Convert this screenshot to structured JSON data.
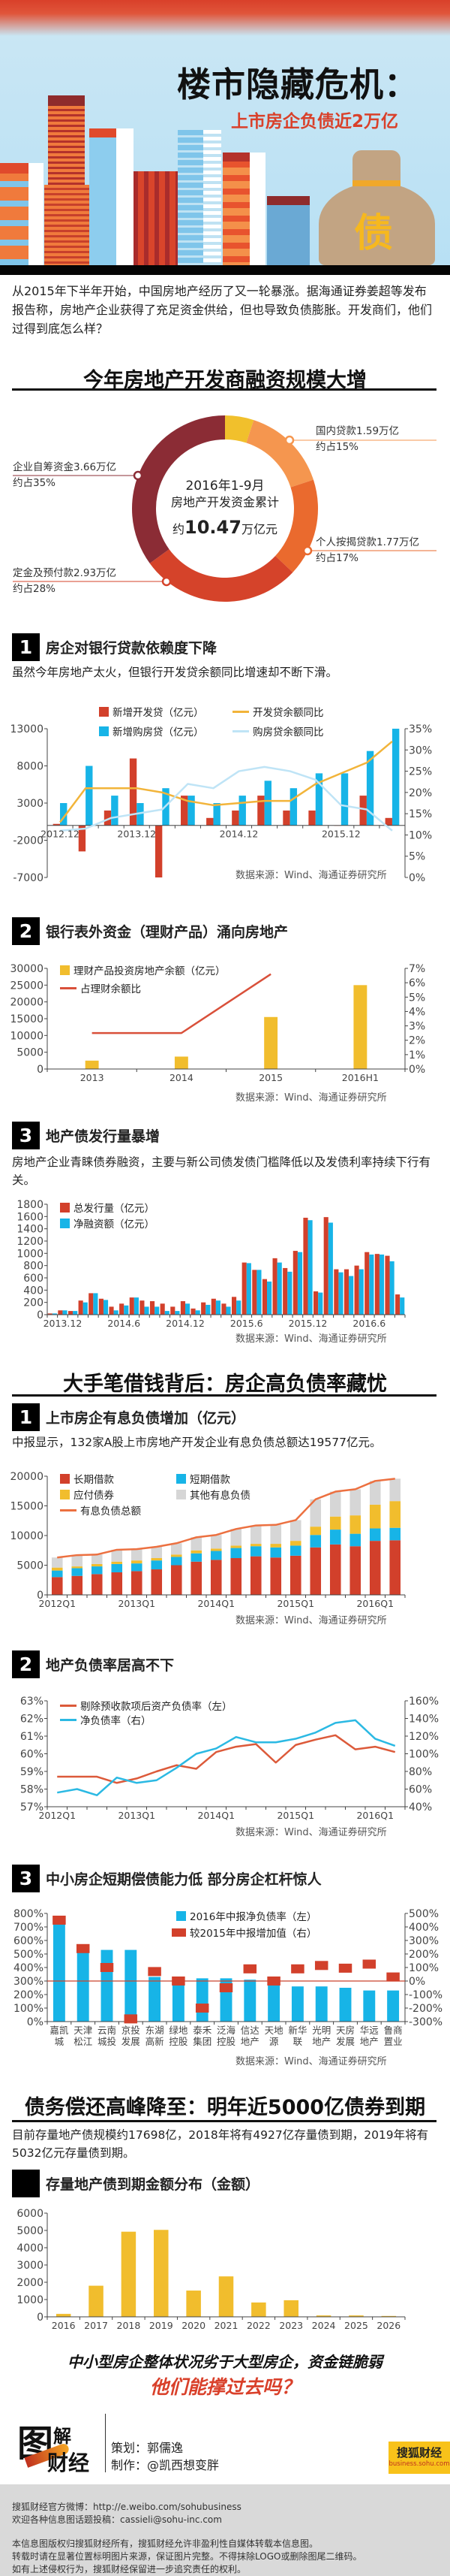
{
  "header": {
    "title": "楼市隐藏危机：",
    "subtitle": "上市房企负债近2万亿",
    "bag_char": "债"
  },
  "intro": "从2015年下半年开始，中国房地产经历了又一轮暴涨。据海通证券姜超等发布报告称，房地产企业获得了充足资金供给，但也导致负债膨胀。开发商们，他们过得到底怎么样？",
  "part1": {
    "title": "今年房地产开发商融资规模大增",
    "center_line1": "2016年1-9月",
    "center_line2": "房地产开发资金累计",
    "center_prefix": "约",
    "center_value": "10.47",
    "center_unit": "万亿元"
  },
  "sec1": {
    "num": "1",
    "title": "房企对银行贷款依赖度下降",
    "desc": "虽然今年房地产太火，但银行开发贷余额同比增速却不断下滑。"
  },
  "sec2": {
    "num": "2",
    "title": "银行表外资金（理财产品）涌向房地产"
  },
  "sec3": {
    "num": "3",
    "title": "地产债发行量暴增",
    "desc": "房地产企业青睐债券融资，主要与新公司债发债门槛降低以及发债利率持续下行有关。"
  },
  "part2": {
    "title": "大手笔借钱背后：房企高负债率藏忧"
  },
  "sec4": {
    "num": "1",
    "title": "上市房企有息负债增加（亿元）",
    "desc": "中报显示，132家A股上市房地产开发企业有息负债总额达19577亿元。"
  },
  "sec5": {
    "num": "2",
    "title": "地产负债率居高不下"
  },
  "sec6": {
    "num": "3",
    "title": "中小房企短期偿债能力低  部分房企杠杆惊人"
  },
  "part3": {
    "title": "债务偿还高峰降至：明年近5000亿债券到期",
    "desc": "目前存量地产债规模约17698亿，2018年将有4927亿存量债到期，2019年将有5032亿元存量债到期。"
  },
  "sec7": {
    "title": "存量地产债到期金额分布（金额）"
  },
  "source": "数据来源：Wind、海通证券研究所",
  "closing": {
    "line1": "中小型房企整体状况劣于大型房企，资金链脆弱",
    "line2": "他们能撑过去吗？"
  },
  "credits": {
    "logo_text1": "图",
    "logo_text2": "解",
    "logo_text3": "财经",
    "planner": "策划：郭儒逸",
    "producer": "制作：@凯西想变胖",
    "badge_name": "搜狐财经",
    "badge_url": "business.sohu.com"
  },
  "footer": {
    "weibo": "搜狐财经官方微博：http://e.weibo.com/sohubusiness",
    "contrib": "欢迎各种信息图话题投稿：cassieli@sohu-inc.com",
    "copy1": "本信息图版权归搜狐财经所有，搜狐财经允许非盈利性自媒体转载本信息图。",
    "copy2": "转载时请在显著位置标明图片来源，保证图片完整。不得抹除LOGO或删除图尾二维码。",
    "copy3": "如有上述侵权行为，搜狐财经保留进一步追究责任的权利。"
  },
  "colors": {
    "red": "#d2402b",
    "blue": "#17b4e7",
    "yellow": "#f1bd2d",
    "gray": "#d6d6d6",
    "dark_red": "#8b2c35",
    "orange": "#ea6a2e",
    "light_orange": "#f5964f"
  },
  "chart_data": [
    {
      "type": "pie",
      "title": "今年房地产开发商融资规模大增",
      "segments": [
        {
          "name": "",
          "share": "",
          "value": 5,
          "color": "#f1c02c"
        },
        {
          "name": "国内贷款1.59万亿",
          "share": "约占15%",
          "value": 15,
          "color": "#f5964f"
        },
        {
          "name": "个人按揭贷款1.77万亿",
          "share": "约占17%",
          "value": 17,
          "color": "#ea6a2e"
        },
        {
          "name": "定金及预付款2.93万亿",
          "share": "约占28%",
          "value": 28,
          "color": "#d5432a"
        },
        {
          "name": "企业自筹资金3.66万亿",
          "share": "约占35%",
          "value": 35,
          "color": "#8b2c35"
        }
      ]
    },
    {
      "type": "bar",
      "title": "房企对银行贷款依赖度下降",
      "n": 14,
      "left_range": [
        -7000,
        13000
      ],
      "left_ticks": [
        "13000",
        "8000",
        "3000",
        "-2000",
        "-7000"
      ],
      "right_range": [
        0,
        35
      ],
      "right_ticks": [
        "35%",
        "30%",
        "25%",
        "20%",
        "15%",
        "10%",
        "5%",
        "0%"
      ],
      "x_labels": [
        {
          "at": 0,
          "label": "2012.12"
        },
        {
          "at": 3,
          "label": "2013.12"
        },
        {
          "at": 7,
          "label": "2014.12"
        },
        {
          "at": 11,
          "label": "2015.12"
        }
      ],
      "series": [
        {
          "name": "新增开发贷（亿元）",
          "type": "bar",
          "axis": "left",
          "color": "#d2402b",
          "values": [
            200,
            -3500,
            2000,
            9000,
            -7000,
            4000,
            1000,
            2000,
            4000,
            2000,
            2000,
            0,
            4000,
            1000
          ]
        },
        {
          "name": "新增购房贷（亿元）",
          "type": "bar",
          "axis": "left",
          "color": "#17b4e7",
          "values": [
            3000,
            8000,
            4000,
            3000,
            5000,
            4000,
            3000,
            4000,
            6000,
            5000,
            7000,
            7000,
            10000,
            13000
          ]
        },
        {
          "name": "开发贷余额同比",
          "type": "line",
          "axis": "right",
          "color": "#f2b43a",
          "values": [
            13,
            21,
            21,
            21,
            20,
            18,
            17,
            17.5,
            18,
            18,
            22,
            24.5,
            27,
            32
          ]
        },
        {
          "name": "购房贷余额同比",
          "type": "line",
          "axis": "right",
          "color": "#bfe4f6",
          "values": [
            11,
            11.5,
            14,
            15,
            16,
            22,
            21,
            25,
            26,
            25,
            23,
            17,
            16,
            11
          ]
        }
      ]
    },
    {
      "type": "bar",
      "title": "银行表外资金（理财产品）涌向房地产",
      "n": 4,
      "left_range": [
        0,
        30000
      ],
      "left_ticks": [
        "30000",
        "25000",
        "20000",
        "15000",
        "10000",
        "5000",
        "0"
      ],
      "right_range": [
        0,
        7
      ],
      "right_ticks": [
        "7%",
        "6%",
        "5%",
        "4%",
        "3%",
        "2%",
        "1%",
        "0%"
      ],
      "x_labels": [
        {
          "at": 0,
          "label": "2013"
        },
        {
          "at": 1,
          "label": "2014"
        },
        {
          "at": 2,
          "label": "2015"
        },
        {
          "at": 3,
          "label": "2016H1"
        }
      ],
      "series": [
        {
          "name": "理财产品投资房地产余额（亿元）",
          "type": "bar",
          "axis": "left",
          "color": "#f1bd2d",
          "values": [
            2500,
            3700,
            15500,
            25000
          ]
        },
        {
          "name": "占理财余额比",
          "type": "line",
          "axis": "right",
          "color": "#d9503a",
          "values": [
            2.5,
            2.5,
            6.6,
            null
          ]
        }
      ]
    },
    {
      "type": "bar",
      "title": "地产债发行量暴增",
      "n": 35,
      "left_range": [
        0,
        1800
      ],
      "left_ticks": [
        "1800",
        "1600",
        "1400",
        "1200",
        "1000",
        "800",
        "600",
        "400",
        "200",
        "0"
      ],
      "x_labels": [
        {
          "at": 1,
          "label": "2013.12"
        },
        {
          "at": 7,
          "label": "2014.6"
        },
        {
          "at": 13,
          "label": "2014.12"
        },
        {
          "at": 19,
          "label": "2015.6"
        },
        {
          "at": 25,
          "label": "2015.12"
        },
        {
          "at": 31,
          "label": "2016.6"
        }
      ],
      "series": [
        {
          "name": "总发行量（亿元）",
          "type": "bar",
          "axis": "left",
          "color": "#d2402b",
          "values": [
            20,
            70,
            60,
            230,
            350,
            260,
            130,
            180,
            280,
            230,
            220,
            180,
            130,
            220,
            100,
            200,
            260,
            180,
            290,
            850,
            730,
            580,
            920,
            760,
            1040,
            1580,
            380,
            1590,
            740,
            740,
            800,
            1020,
            990,
            960,
            330
          ]
        },
        {
          "name": "净融资额（亿元）",
          "type": "bar",
          "axis": "left",
          "color": "#17b4e7",
          "values": [
            20,
            70,
            60,
            200,
            350,
            240,
            70,
            150,
            280,
            130,
            130,
            60,
            60,
            180,
            70,
            160,
            230,
            130,
            230,
            840,
            730,
            540,
            850,
            700,
            1020,
            1540,
            360,
            1500,
            690,
            630,
            740,
            980,
            980,
            870,
            280
          ]
        }
      ]
    },
    {
      "type": "bar",
      "stacked": true,
      "title": "上市房企有息负债增加（亿元）",
      "n": 18,
      "left_range": [
        0,
        20000
      ],
      "left_ticks": [
        "20000",
        "15000",
        "10000",
        "5000",
        "0"
      ],
      "x_labels": [
        {
          "at": 0,
          "label": "2012Q1"
        },
        {
          "at": 4,
          "label": "2013Q1"
        },
        {
          "at": 8,
          "label": "2014Q1"
        },
        {
          "at": 12,
          "label": "2015Q1"
        },
        {
          "at": 16,
          "label": "2016Q1"
        }
      ],
      "series": [
        {
          "name": "长期借款",
          "type": "bar",
          "axis": "left",
          "color": "#d2402b",
          "values": [
            3000,
            3200,
            3500,
            3800,
            4000,
            4300,
            5000,
            5600,
            5900,
            6200,
            6500,
            6300,
            6600,
            8000,
            8500,
            8200,
            9100,
            9200
          ]
        },
        {
          "name": "短期借款",
          "type": "bar",
          "axis": "left",
          "color": "#17b4e7",
          "values": [
            1100,
            1300,
            1300,
            1400,
            1300,
            1500,
            1400,
            1400,
            1500,
            1700,
            1700,
            1700,
            1700,
            2100,
            2500,
            2100,
            2100,
            2100
          ]
        },
        {
          "name": "应付债券",
          "type": "bar",
          "axis": "left",
          "color": "#f1bd2d",
          "values": [
            500,
            300,
            400,
            400,
            500,
            400,
            400,
            500,
            400,
            400,
            400,
            600,
            800,
            1400,
            2200,
            3100,
            4000,
            4500
          ]
        },
        {
          "name": "其他有息负债",
          "type": "bar",
          "axis": "left",
          "color": "#d6d6d6",
          "values": [
            1700,
            1900,
            1600,
            2000,
            1900,
            1900,
            1900,
            2200,
            2300,
            2800,
            3100,
            3200,
            3500,
            4600,
            4200,
            4400,
            4000,
            3777
          ]
        },
        {
          "name": "有息负债总额",
          "type": "line",
          "axis": "left",
          "color": "#ec7040",
          "values": [
            6300,
            6700,
            6800,
            7600,
            7700,
            8100,
            8700,
            9700,
            10100,
            11100,
            11700,
            11800,
            12600,
            16100,
            17400,
            17800,
            19200,
            19577
          ]
        }
      ]
    },
    {
      "type": "line",
      "title": "地产负债率居高不下",
      "n": 18,
      "left_range": [
        57,
        63
      ],
      "left_ticks": [
        "63%",
        "62%",
        "61%",
        "60%",
        "59%",
        "58%",
        "57%"
      ],
      "right_range": [
        40,
        160
      ],
      "right_ticks": [
        "160%",
        "140%",
        "120%",
        "100%",
        "80%",
        "60%",
        "40%"
      ],
      "x_labels": [
        {
          "at": 0,
          "label": "2012Q1"
        },
        {
          "at": 4,
          "label": "2013Q1"
        },
        {
          "at": 8,
          "label": "2014Q1"
        },
        {
          "at": 12,
          "label": "2015Q1"
        },
        {
          "at": 16,
          "label": "2016Q1"
        }
      ],
      "series": [
        {
          "name": "剔除预收款项后资产负债率（左）",
          "type": "line",
          "axis": "left",
          "color": "#dc5a3a",
          "values": [
            58.7,
            58.7,
            58.7,
            58.35,
            58.6,
            59.0,
            59.35,
            59.15,
            60.1,
            60.4,
            60.55,
            59.5,
            60.5,
            60.8,
            61.05,
            60.25,
            60.4,
            60.1
          ]
        },
        {
          "name": "净负债率（右）",
          "type": "line",
          "axis": "right",
          "color": "#2bb9e3",
          "values": [
            56,
            60,
            53,
            73,
            67,
            70,
            84,
            100,
            106,
            119,
            113,
            113,
            117,
            124,
            135,
            138,
            117,
            109
          ]
        }
      ]
    },
    {
      "type": "bar",
      "title": "中小房企短期偿债能力低  部分房企杠杆惊人",
      "n": 15,
      "categories": [
        "嘉凯城",
        "天津松江",
        "云南城投",
        "京投发展",
        "东湖高新",
        "绿地控股",
        "泰禾集团",
        "泛海控股",
        "信达地产",
        "天地源",
        "新华联",
        "光明地产",
        "天房发展",
        "华远地产",
        "鲁商置业"
      ],
      "left_range": [
        0,
        800
      ],
      "left_ticks": [
        "800%",
        "700%",
        "600%",
        "500%",
        "400%",
        "300%",
        "200%",
        "100%",
        "0%"
      ],
      "right_range": [
        -300,
        500
      ],
      "right_ticks": [
        "500%",
        "400%",
        "300%",
        "200%",
        "100%",
        "0%",
        "-100%",
        "-200%",
        "-300%"
      ],
      "series": [
        {
          "name": "2016年中报净负债率（左）",
          "type": "bar",
          "axis": "left",
          "color": "#17b4e7",
          "values": [
            720,
            520,
            530,
            530,
            330,
            280,
            320,
            320,
            310,
            280,
            260,
            260,
            250,
            230,
            230
          ]
        },
        {
          "name": "较2015年中报增加值（右）",
          "type": "marker",
          "axis": "right",
          "color": "#d2402b",
          "values": [
            450,
            240,
            100,
            -280,
            70,
            0,
            -200,
            -50,
            90,
            0,
            90,
            115,
            95,
            125,
            30
          ]
        }
      ]
    },
    {
      "type": "bar",
      "title": "存量地产债到期金额分布（金额）",
      "n": 11,
      "left_range": [
        0,
        6000
      ],
      "left_ticks": [
        "6000",
        "5000",
        "4000",
        "3000",
        "2000",
        "1000",
        "0"
      ],
      "x_labels": [
        {
          "at": 0,
          "label": "2016"
        },
        {
          "at": 1,
          "label": "2017"
        },
        {
          "at": 2,
          "label": "2018"
        },
        {
          "at": 3,
          "label": "2019"
        },
        {
          "at": 4,
          "label": "2020"
        },
        {
          "at": 5,
          "label": "2021"
        },
        {
          "at": 6,
          "label": "2022"
        },
        {
          "at": 7,
          "label": "2023"
        },
        {
          "at": 8,
          "label": "2024"
        },
        {
          "at": 9,
          "label": "2025"
        },
        {
          "at": 10,
          "label": "2026"
        }
      ],
      "series": [
        {
          "name": "到期金额",
          "type": "bar",
          "axis": "left",
          "color": "#f1bd2d",
          "values": [
            170,
            1800,
            4927,
            5032,
            1520,
            2340,
            830,
            960,
            80,
            80,
            50
          ]
        }
      ]
    }
  ]
}
